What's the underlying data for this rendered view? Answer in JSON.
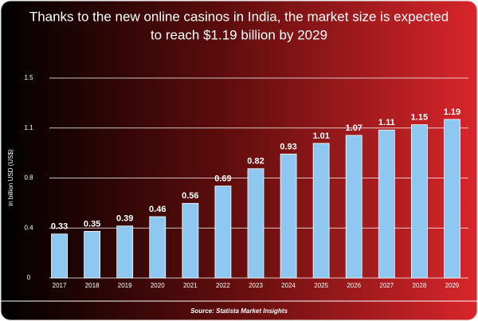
{
  "chart_data": {
    "type": "bar",
    "title": "Thanks to the new online casinos in India, the market size is expected",
    "subtitle": "to reach $1.19 billion by 2029",
    "y_label": "in billion USD (US$)",
    "source": "Source: Statista Market Insights",
    "categories": [
      "2017",
      "2018",
      "2019",
      "2020",
      "2021",
      "2022",
      "2023",
      "2024",
      "2025",
      "2026",
      "2027",
      "2028",
      "2029"
    ],
    "values": [
      0.33,
      0.35,
      0.39,
      0.46,
      0.56,
      0.69,
      0.82,
      0.93,
      1.01,
      1.07,
      1.11,
      1.15,
      1.19
    ],
    "color": "#8ec7f0",
    "ylim": [
      0,
      1.5
    ],
    "yticks": [
      0,
      {
        "value": 0.375,
        "label": "0.4"
      },
      {
        "value": 0.75,
        "label": "0.8"
      },
      {
        "value": 1.125,
        "label": "1.1"
      },
      1.5
    ],
    "grid": true
  }
}
